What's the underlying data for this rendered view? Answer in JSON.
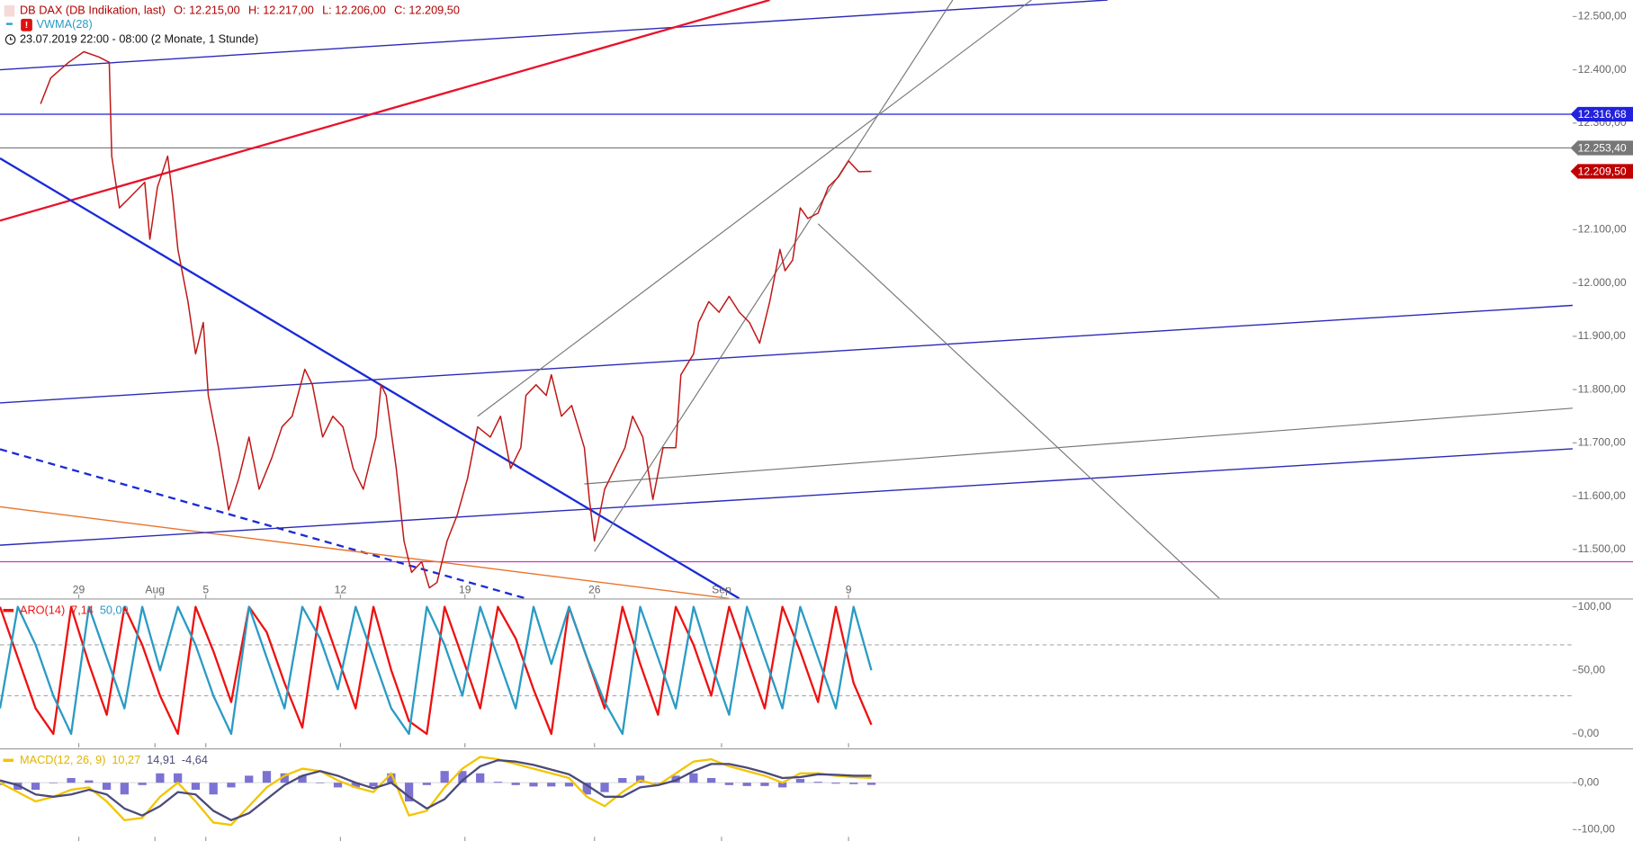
{
  "chart_data": [
    {
      "type": "line",
      "title": "DB DAX (DB Indikation, last)",
      "ohlc": [
        "O: 12.215,00",
        "H: 12.217,00",
        "L: 12.206,00",
        "C: 12.209,50"
      ],
      "indicator": "VWMA(28)",
      "period": "23.07.2019 22:00 - 08:00  (2 Monate, 1 Stunde)",
      "xlim": [
        0,
        61.9
      ],
      "ylim": [
        11408,
        12531
      ],
      "xticks": [
        {
          "value": 3.1,
          "label": "29"
        },
        {
          "value": 6.1,
          "label": "Aug"
        },
        {
          "value": 8.1,
          "label": "5"
        },
        {
          "value": 13.4,
          "label": "12"
        },
        {
          "value": 18.3,
          "label": "19"
        },
        {
          "value": 23.4,
          "label": "26"
        },
        {
          "value": 28.4,
          "label": "Sep"
        },
        {
          "value": 33.4,
          "label": "9"
        }
      ],
      "yticks": [
        {
          "value": 12500,
          "label": "12.500,00"
        },
        {
          "value": 12400,
          "label": "12.400,00"
        },
        {
          "value": 12300,
          "label": "12.300,00"
        },
        {
          "value": 12100,
          "label": "12.100,00"
        },
        {
          "value": 12000,
          "label": "12.000,00"
        },
        {
          "value": 11900,
          "label": "11.900,00"
        },
        {
          "value": 11800,
          "label": "11.800,00"
        },
        {
          "value": 11700,
          "label": "11.700,00"
        },
        {
          "value": 11600,
          "label": "11.600,00"
        },
        {
          "value": 11500,
          "label": "11.500,00"
        }
      ],
      "hlines": [
        {
          "value": 12316.68,
          "label": "12.316,68",
          "color": "#2222dd"
        },
        {
          "value": 12253.4,
          "label": "12.253,40",
          "color": "#777777"
        },
        {
          "value": 11477,
          "color": "#cc33cc"
        }
      ],
      "last": {
        "value": 12209.5,
        "label": "12.209,50",
        "color": "#c00000"
      },
      "trendlines": [
        {
          "x": [
            0,
            43.6
          ],
          "y": [
            12400,
            12531
          ],
          "color": "#2a2ab8",
          "width": 1.2
        },
        {
          "x": [
            0,
            30.3
          ],
          "y": [
            12117,
            12531
          ],
          "color": "#e8122a",
          "width": 2
        },
        {
          "x": [
            0,
            29.1
          ],
          "y": [
            12234,
            11408
          ],
          "color": "#1a2ad8",
          "width": 2
        },
        {
          "x": [
            0,
            20.7
          ],
          "y": [
            11688,
            11408
          ],
          "color": "#1a2ad8",
          "width": 2,
          "dash": true
        },
        {
          "x": [
            0,
            28.7
          ],
          "y": [
            11580,
            11408
          ],
          "color": "#e8742a",
          "width": 1.2
        },
        {
          "x": [
            0,
            61.9
          ],
          "y": [
            11775,
            11958
          ],
          "color": "#2a2ab8",
          "width": 1.2
        },
        {
          "x": [
            0,
            61.9
          ],
          "y": [
            11508,
            11689
          ],
          "color": "#2a2ab8",
          "width": 1.2
        },
        {
          "x": [
            23.0,
            61.9
          ],
          "y": [
            11623,
            11765
          ],
          "color": "#777777",
          "width": 1
        },
        {
          "x": [
            18.8,
            40.6
          ],
          "y": [
            11750,
            12531
          ],
          "color": "#777777",
          "width": 1
        },
        {
          "x": [
            23.4,
            37.5
          ],
          "y": [
            11496,
            12531
          ],
          "color": "#777777",
          "width": 1
        },
        {
          "x": [
            32.2,
            48.0
          ],
          "y": [
            12111,
            11408
          ],
          "color": "#777777",
          "width": 1
        }
      ],
      "series": [
        {
          "name": "DB DAX",
          "color": "#c01818",
          "x": [
            1.6,
            2.0,
            2.7,
            3.3,
            3.9,
            4.3,
            4.4,
            4.7,
            5.1,
            5.7,
            5.9,
            6.2,
            6.6,
            6.8,
            7.0,
            7.4,
            7.7,
            8.0,
            8.2,
            8.6,
            9.0,
            9.4,
            9.8,
            10.2,
            10.7,
            11.1,
            11.5,
            12.0,
            12.3,
            12.7,
            13.1,
            13.5,
            13.9,
            14.3,
            14.8,
            15.0,
            15.2,
            15.6,
            15.9,
            16.2,
            16.6,
            16.9,
            17.2,
            17.6,
            18.0,
            18.4,
            18.8,
            19.3,
            19.7,
            20.1,
            20.5,
            20.7,
            21.1,
            21.5,
            21.7,
            22.1,
            22.5,
            23.0,
            23.2,
            23.4,
            23.8,
            24.2,
            24.6,
            24.9,
            25.3,
            25.7,
            26.1,
            26.6,
            26.8,
            27.3,
            27.5,
            27.9,
            28.3,
            28.7,
            29.1,
            29.5,
            29.9,
            30.3,
            30.7,
            30.9,
            31.2,
            31.5,
            31.8,
            32.2,
            32.6,
            33.0,
            33.4,
            33.8,
            34.3
          ],
          "values": [
            12336,
            12385,
            12414,
            12434,
            12424,
            12414,
            12238,
            12141,
            12160,
            12189,
            12082,
            12180,
            12238,
            12160,
            12063,
            11965,
            11867,
            11926,
            11789,
            11691,
            11574,
            11633,
            11711,
            11613,
            11672,
            11730,
            11750,
            11838,
            11809,
            11711,
            11750,
            11730,
            11652,
            11613,
            11711,
            11809,
            11789,
            11652,
            11516,
            11457,
            11477,
            11428,
            11438,
            11516,
            11565,
            11633,
            11730,
            11711,
            11750,
            11652,
            11691,
            11789,
            11809,
            11789,
            11828,
            11750,
            11770,
            11691,
            11594,
            11516,
            11613,
            11652,
            11691,
            11750,
            11711,
            11594,
            11691,
            11691,
            11828,
            11867,
            11926,
            11965,
            11945,
            11975,
            11945,
            11926,
            11887,
            11965,
            12063,
            12023,
            12043,
            12141,
            12121,
            12131,
            12180,
            12199,
            12229,
            12209,
            12209.5
          ]
        }
      ]
    },
    {
      "type": "line",
      "title": "ARO(14)",
      "xlim": [
        0,
        61.9
      ],
      "ylim": [
        -10.6,
        105.7
      ],
      "yticks": [
        {
          "value": 100,
          "label": "100,00"
        },
        {
          "value": 50,
          "label": "50,00"
        },
        {
          "value": 0,
          "label": "0,00"
        }
      ],
      "hlines": [
        {
          "value": 70,
          "color": "#aaaaaa",
          "dash": true
        },
        {
          "value": 30,
          "color": "#aaaaaa",
          "dash": true
        }
      ],
      "series": [
        {
          "name": "7,14",
          "color": "#ee1111",
          "x": [
            0,
            0.7,
            1.4,
            2.1,
            2.8,
            3.5,
            4.2,
            4.9,
            5.6,
            6.3,
            7,
            7.7,
            8.4,
            9.1,
            9.8,
            10.5,
            11.2,
            11.9,
            12.6,
            13.3,
            14,
            14.7,
            15.4,
            16.1,
            16.8,
            17.5,
            18.2,
            18.9,
            19.6,
            20.3,
            21,
            21.7,
            22.4,
            23.1,
            23.8,
            24.5,
            25.2,
            25.9,
            26.6,
            27.3,
            28,
            28.7,
            29.4,
            30.1,
            30.8,
            31.5,
            32.2,
            32.9,
            33.6,
            34.3
          ],
          "values": [
            100,
            60,
            20,
            0,
            100,
            55,
            15,
            100,
            70,
            30,
            0,
            100,
            65,
            25,
            100,
            80,
            40,
            5,
            100,
            60,
            20,
            100,
            50,
            10,
            0,
            100,
            60,
            20,
            100,
            75,
            35,
            0,
            100,
            60,
            20,
            100,
            55,
            15,
            100,
            70,
            30,
            100,
            60,
            20,
            100,
            65,
            25,
            100,
            40,
            7.14
          ]
        },
        {
          "name": "50,00",
          "color": "#2a9bc4",
          "x": [
            0,
            0.7,
            1.4,
            2.1,
            2.8,
            3.5,
            4.2,
            4.9,
            5.6,
            6.3,
            7,
            7.7,
            8.4,
            9.1,
            9.8,
            10.5,
            11.2,
            11.9,
            12.6,
            13.3,
            14,
            14.7,
            15.4,
            16.1,
            16.8,
            17.5,
            18.2,
            18.9,
            19.6,
            20.3,
            21,
            21.7,
            22.4,
            23.1,
            23.8,
            24.5,
            25.2,
            25.9,
            26.6,
            27.3,
            28,
            28.7,
            29.4,
            30.1,
            30.8,
            31.5,
            32.2,
            32.9,
            33.6,
            34.3
          ],
          "values": [
            20,
            100,
            70,
            30,
            0,
            100,
            60,
            20,
            100,
            50,
            100,
            70,
            30,
            0,
            100,
            60,
            20,
            100,
            75,
            35,
            100,
            60,
            20,
            0,
            100,
            70,
            30,
            100,
            60,
            20,
            100,
            55,
            100,
            60,
            25,
            0,
            100,
            60,
            20,
            100,
            55,
            15,
            100,
            60,
            20,
            100,
            60,
            20,
            100,
            50
          ]
        }
      ]
    },
    {
      "type": "line",
      "title": "MACD(12, 26, 9)",
      "xlim": [
        0,
        61.9
      ],
      "ylim": [
        -124.4,
        71.1
      ],
      "yticks": [
        {
          "value": 0,
          "label": "0,00"
        },
        {
          "value": -100,
          "label": "-100,00"
        }
      ],
      "hlines": [
        {
          "value": 0,
          "color": "#dddddd"
        }
      ],
      "series": [
        {
          "name": "-4,64",
          "type": "bar",
          "color": "#5a4fc8",
          "x": [
            0,
            0.7,
            1.4,
            2.1,
            2.8,
            3.5,
            4.2,
            4.9,
            5.6,
            6.3,
            7,
            7.7,
            8.4,
            9.1,
            9.8,
            10.5,
            11.2,
            11.9,
            12.6,
            13.3,
            14,
            14.7,
            15.4,
            16.1,
            16.8,
            17.5,
            18.2,
            18.9,
            19.6,
            20.3,
            21,
            21.7,
            22.4,
            23.1,
            23.8,
            24.5,
            25.2,
            25.9,
            26.6,
            27.3,
            28,
            28.7,
            29.4,
            30.1,
            30.8,
            31.5,
            32.2,
            32.9,
            33.6,
            34.3
          ],
          "values": [
            -5,
            -15,
            -15,
            0,
            10,
            5,
            -15,
            -25,
            -5,
            20,
            20,
            -15,
            -25,
            -10,
            15,
            25,
            20,
            15,
            0,
            -10,
            -10,
            -8,
            20,
            -40,
            -5,
            25,
            25,
            20,
            2,
            -5,
            -8,
            -8,
            -8,
            -25,
            -20,
            10,
            15,
            0,
            15,
            20,
            10,
            -5,
            -7,
            -7,
            -10,
            8,
            2,
            -2,
            -3,
            -4.64
          ]
        },
        {
          "name": "10,27",
          "color": "#f2c500",
          "x": [
            0,
            0.7,
            1.4,
            2.1,
            2.8,
            3.5,
            4.2,
            4.9,
            5.6,
            6.3,
            7,
            7.7,
            8.4,
            9.1,
            9.8,
            10.5,
            11.2,
            11.9,
            12.6,
            13.3,
            14,
            14.7,
            15.4,
            16.1,
            16.8,
            17.5,
            18.2,
            18.9,
            19.6,
            20.3,
            21,
            21.7,
            22.4,
            23.1,
            23.8,
            24.5,
            25.2,
            25.9,
            26.6,
            27.3,
            28,
            28.7,
            29.4,
            30.1,
            30.8,
            31.5,
            32.2,
            32.9,
            33.6,
            34.3
          ],
          "values": [
            0,
            -20,
            -40,
            -30,
            -15,
            -10,
            -40,
            -80,
            -75,
            -30,
            0,
            -40,
            -85,
            -90,
            -50,
            -10,
            15,
            30,
            25,
            5,
            -10,
            -20,
            20,
            -70,
            -60,
            -10,
            30,
            55,
            50,
            40,
            30,
            20,
            10,
            -30,
            -50,
            -20,
            5,
            -5,
            20,
            45,
            50,
            35,
            25,
            15,
            0,
            20,
            20,
            15,
            12,
            10.27
          ]
        },
        {
          "name": "14,91",
          "color": "#4a4a7a",
          "x": [
            0,
            0.7,
            1.4,
            2.1,
            2.8,
            3.5,
            4.2,
            4.9,
            5.6,
            6.3,
            7,
            7.7,
            8.4,
            9.1,
            9.8,
            10.5,
            11.2,
            11.9,
            12.6,
            13.3,
            14,
            14.7,
            15.4,
            16.1,
            16.8,
            17.5,
            18.2,
            18.9,
            19.6,
            20.3,
            21,
            21.7,
            22.4,
            23.1,
            23.8,
            24.5,
            25.2,
            25.9,
            26.6,
            27.3,
            28,
            28.7,
            29.4,
            30.1,
            30.8,
            31.5,
            32.2,
            32.9,
            33.6,
            34.3
          ],
          "values": [
            5,
            -5,
            -25,
            -30,
            -25,
            -15,
            -25,
            -55,
            -70,
            -50,
            -20,
            -25,
            -60,
            -80,
            -65,
            -35,
            -5,
            15,
            25,
            15,
            0,
            -12,
            0,
            -30,
            -55,
            -35,
            5,
            35,
            48,
            45,
            38,
            28,
            18,
            -5,
            -30,
            -30,
            -10,
            -5,
            5,
            25,
            40,
            40,
            32,
            22,
            10,
            12,
            18,
            17,
            15,
            14.91
          ]
        }
      ]
    }
  ]
}
